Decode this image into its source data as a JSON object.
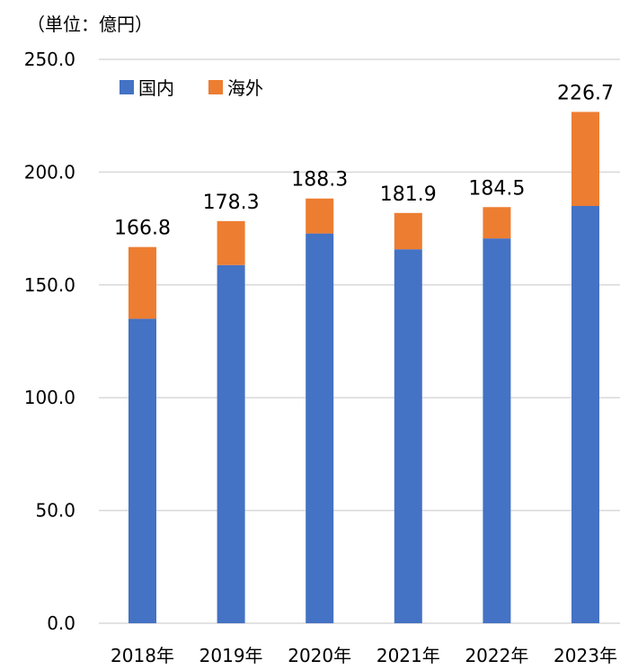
{
  "chart_data": {
    "type": "bar",
    "stacked": true,
    "unit_label": "（単位：億円）",
    "categories": [
      "2018年",
      "2019年",
      "2020年",
      "2021年",
      "2022年",
      "2023年"
    ],
    "series": [
      {
        "name": "国内",
        "color": "#4472C4",
        "values": [
          135.0,
          158.8,
          172.8,
          165.8,
          170.6,
          185.0
        ]
      },
      {
        "name": "海外",
        "color": "#ED7D31",
        "values": [
          31.8,
          19.5,
          15.5,
          16.1,
          13.9,
          41.7
        ]
      }
    ],
    "totals": [
      "166.8",
      "178.3",
      "188.3",
      "181.9",
      "184.5",
      "226.7"
    ],
    "ylim": [
      0,
      250
    ],
    "yticks": [
      "0.0",
      "50.0",
      "100.0",
      "150.0",
      "200.0",
      "250.0"
    ],
    "grid": true,
    "legend_position": "top-left"
  }
}
